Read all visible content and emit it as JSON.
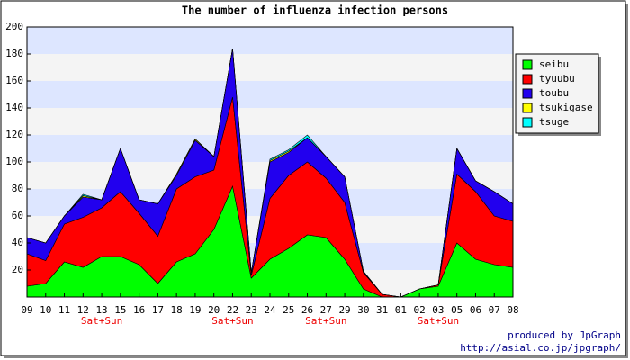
{
  "chart_data": {
    "type": "stacked_area",
    "title": "The number of influenza infection persons",
    "categories": [
      "09",
      "10",
      "11",
      "12",
      "13",
      "15",
      "16",
      "17",
      "18",
      "19",
      "20",
      "22",
      "23",
      "24",
      "25",
      "26",
      "27",
      "29",
      "30",
      "31",
      "01",
      "02",
      "03",
      "05",
      "06",
      "07",
      "08"
    ],
    "sublabels": [
      null,
      null,
      null,
      null,
      "Sat+Sun",
      null,
      null,
      null,
      null,
      null,
      null,
      "Sat+Sun",
      null,
      null,
      null,
      null,
      "Sat+Sun",
      null,
      null,
      null,
      null,
      null,
      "Sat+Sun",
      null,
      null,
      null,
      null
    ],
    "series": [
      {
        "name": "seibu",
        "color": "#00ff00",
        "values": [
          8,
          10,
          26,
          22,
          30,
          30,
          24,
          10,
          26,
          32,
          50,
          82,
          14,
          28,
          36,
          46,
          44,
          28,
          6,
          0,
          0,
          6,
          8,
          40,
          28,
          24,
          22
        ]
      },
      {
        "name": "tyuubu",
        "color": "#ff0000",
        "values": [
          24,
          17,
          28,
          37,
          36,
          48,
          38,
          35,
          54,
          57,
          44,
          66,
          2,
          45,
          54,
          54,
          44,
          42,
          12,
          2,
          0,
          0,
          1,
          51,
          50,
          36,
          34
        ]
      },
      {
        "name": "toubu",
        "color": "#2200ee",
        "values": [
          12,
          13,
          6,
          15,
          6,
          32,
          10,
          24,
          10,
          27,
          10,
          36,
          2,
          27,
          17,
          18,
          16,
          19,
          1,
          0,
          0,
          0,
          0,
          19,
          8,
          18,
          13
        ]
      },
      {
        "name": "tsukigase",
        "color": "#ffff00",
        "values": [
          0,
          0,
          0,
          1,
          0,
          0,
          0,
          0,
          1,
          1,
          0,
          0,
          0,
          1,
          1,
          0,
          0,
          0,
          0,
          0,
          0,
          0,
          0,
          0,
          0,
          0,
          0
        ]
      },
      {
        "name": "tsuge",
        "color": "#00ffff",
        "values": [
          0,
          0,
          0,
          1,
          0,
          0,
          0,
          0,
          0,
          0,
          0,
          0,
          0,
          1,
          1,
          2,
          0,
          0,
          0,
          0,
          0,
          0,
          0,
          0,
          0,
          0,
          0
        ]
      }
    ],
    "ylim": [
      0,
      200
    ],
    "yticks": [
      20,
      40,
      60,
      80,
      100,
      120,
      140,
      160,
      180,
      200
    ],
    "credits": [
      "produced by JpGraph",
      "http://asial.co.jp/jpgraph/"
    ]
  }
}
